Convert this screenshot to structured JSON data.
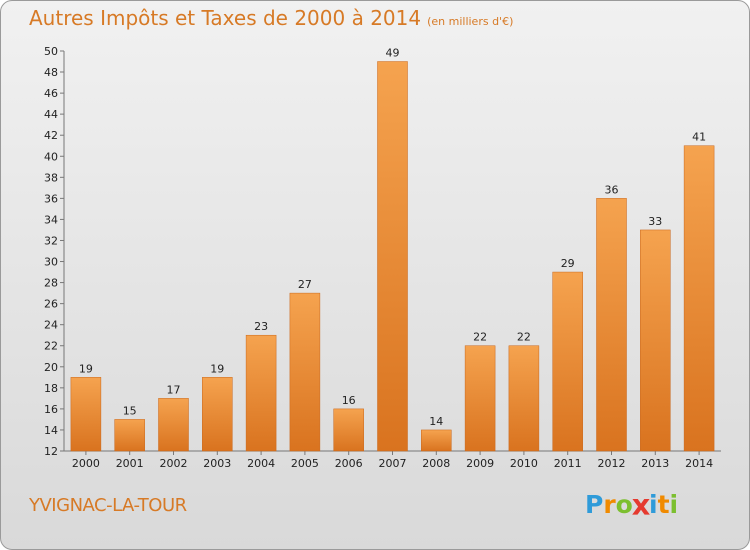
{
  "title": "Autres Impôts et Taxes de 2000 à 2014",
  "subtitle": "(en milliers d'€)",
  "commune": "YVIGNAC-LA-TOUR",
  "brand": {
    "letters": [
      "P",
      "r",
      "o",
      "x",
      "i",
      "t",
      "i"
    ],
    "colors": [
      "#2f9bd9",
      "#f08a00",
      "#7cbf2f",
      "#e53a2f",
      "#2f9bd9",
      "#f08a00",
      "#7cbf2f"
    ]
  },
  "colors": {
    "accent": "#d77a26",
    "bar_light": "#f5a34f",
    "bar_dark": "#d9731f"
  },
  "chart_data": {
    "type": "bar",
    "categories": [
      "2000",
      "2001",
      "2002",
      "2003",
      "2004",
      "2005",
      "2006",
      "2007",
      "2008",
      "2009",
      "2010",
      "2011",
      "2012",
      "2013",
      "2014"
    ],
    "values": [
      19,
      15,
      17,
      19,
      23,
      27,
      16,
      49,
      14,
      22,
      22,
      29,
      36,
      33,
      41
    ],
    "title": "Autres Impôts et Taxes de 2000 à 2014",
    "subtitle": "(en milliers d'€)",
    "xlabel": "",
    "ylabel": "",
    "ylim": [
      12,
      50
    ],
    "yticks": [
      "12",
      "14",
      "16",
      "18",
      "20",
      "22",
      "24",
      "26",
      "28",
      "30",
      "32",
      "34",
      "36",
      "38",
      "40",
      "42",
      "44",
      "46",
      "48",
      "50"
    ],
    "grid": false,
    "legend": "none"
  }
}
